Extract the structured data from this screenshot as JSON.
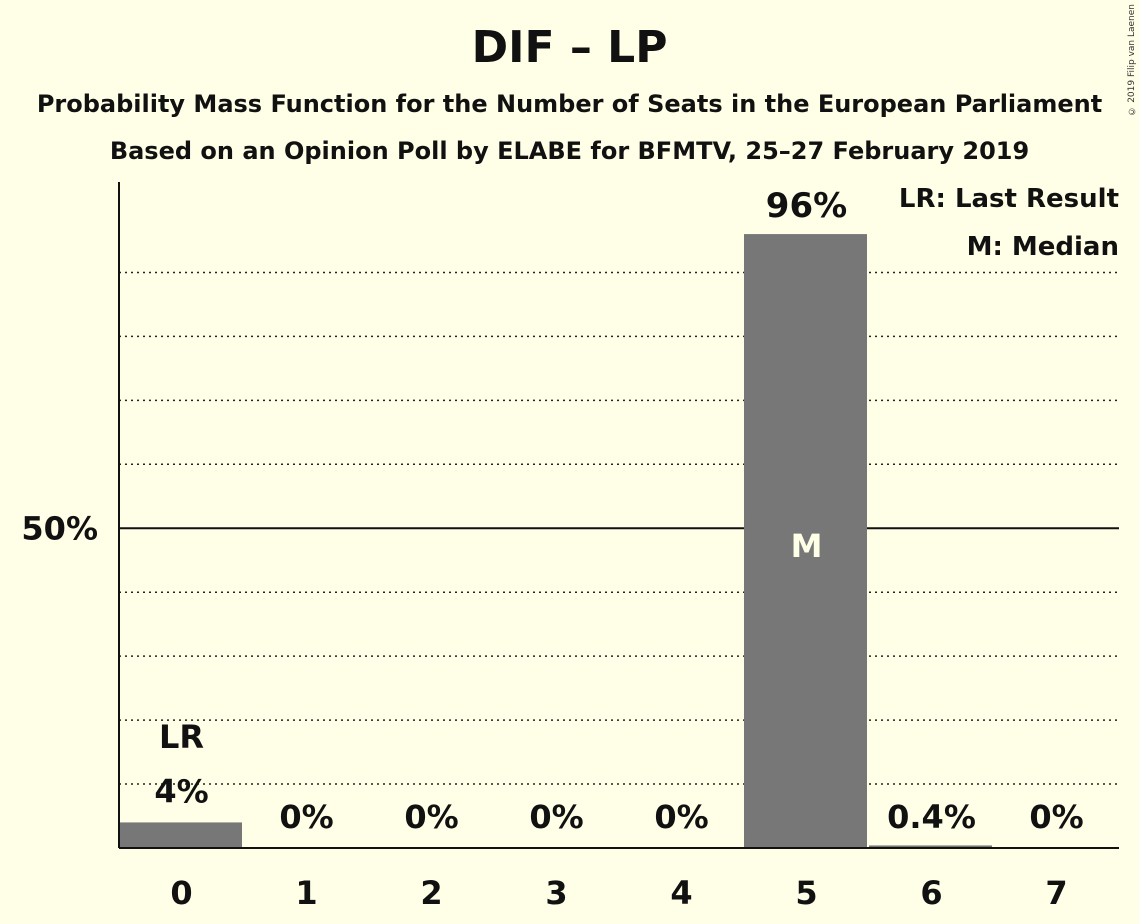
{
  "header": {
    "title": "DIF – LP",
    "subtitle1": "Probability Mass Function for the Number of Seats in the European Parliament",
    "subtitle2": "Based on an Opinion Poll by ELABE for BFMTV, 25–27 February 2019",
    "copyright": "© 2019 Filip van Laenen"
  },
  "legend": {
    "last_result": "LR: Last Result",
    "median": "M: Median"
  },
  "colors": {
    "background": "#FFFEE6",
    "bar": "#777777",
    "text": "#111111"
  },
  "chart_data": {
    "type": "bar",
    "categories": [
      "0",
      "1",
      "2",
      "3",
      "4",
      "5",
      "6",
      "7"
    ],
    "values": [
      4,
      0,
      0,
      0,
      0,
      96,
      0.4,
      0
    ],
    "value_labels": [
      "4%",
      "0%",
      "0%",
      "0%",
      "0%",
      "96%",
      "0.4%",
      "0%"
    ],
    "ylim": [
      0,
      105
    ],
    "yticks": [
      {
        "value": 50,
        "label": "50%"
      }
    ],
    "grid": "dotted every 10%",
    "last_result_index": 0,
    "last_result_marker": "LR",
    "median_index": 5,
    "median_marker": "M",
    "legend_position": "top-right"
  }
}
